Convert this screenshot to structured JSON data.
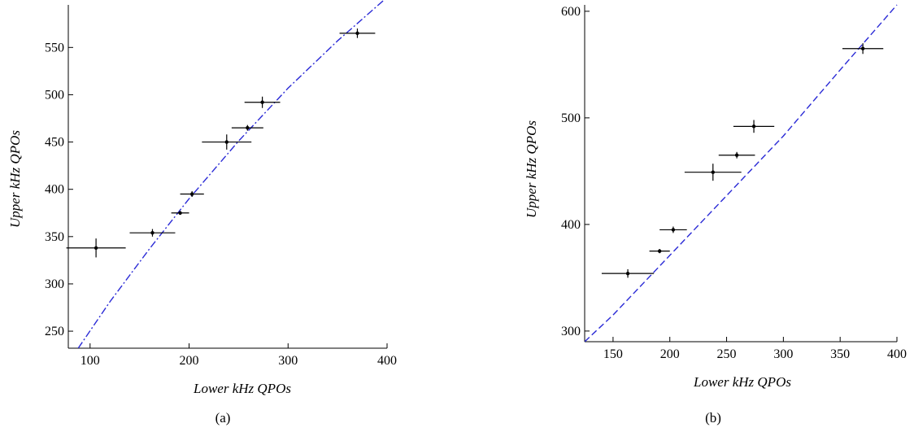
{
  "chart_data": [
    {
      "type": "scatter",
      "caption": "(a)",
      "xlabel": "Lower kHz QPOs",
      "ylabel": "Upper kHz QPOs",
      "xlim": [
        78,
        400
      ],
      "ylim": [
        232,
        595
      ],
      "x_ticks": [
        100,
        200,
        300,
        400
      ],
      "y_ticks": [
        250,
        300,
        350,
        400,
        450,
        500,
        550
      ],
      "x_tick_labels": [
        "100",
        "200",
        "300",
        "400"
      ],
      "y_tick_labels": [
        "250",
        "300",
        "350",
        "400",
        "450",
        "500",
        "550"
      ],
      "grid": false,
      "series": [
        {
          "kind": "errorbar",
          "color": "#000000",
          "points": [
            {
              "x": 106,
              "y": 338,
              "xerr": 30,
              "yerr": 10
            },
            {
              "x": 163,
              "y": 354,
              "xerr": 23,
              "yerr": 4
            },
            {
              "x": 191,
              "y": 375,
              "xerr": 9,
              "yerr": 2
            },
            {
              "x": 203,
              "y": 395,
              "xerr": 12,
              "yerr": 3
            },
            {
              "x": 238,
              "y": 450,
              "xerr": 25,
              "yerr": 8
            },
            {
              "x": 259,
              "y": 465,
              "xerr": 16,
              "yerr": 3
            },
            {
              "x": 274,
              "y": 492,
              "xerr": 18,
              "yerr": 6
            },
            {
              "x": 370,
              "y": 565,
              "xerr": 18,
              "yerr": 5
            }
          ]
        },
        {
          "kind": "fit-line",
          "style": "dash-dot",
          "color": "#2a2ad6",
          "x": [
            88,
            120,
            160,
            200,
            250,
            300,
            350,
            400
          ],
          "y": [
            232,
            281,
            337,
            390,
            451,
            507,
            557,
            603
          ]
        }
      ]
    },
    {
      "type": "scatter",
      "caption": "(b)",
      "xlabel": "Lower kHz QPOs",
      "ylabel": "Upper kHz QPOs",
      "xlim": [
        125,
        400
      ],
      "ylim": [
        290,
        606
      ],
      "x_ticks": [
        150,
        200,
        250,
        300,
        350,
        400
      ],
      "y_ticks": [
        300,
        400,
        500,
        600
      ],
      "x_tick_labels": [
        "150",
        "200",
        "250",
        "300",
        "350",
        "400"
      ],
      "y_tick_labels": [
        "300",
        "400",
        "500",
        "600"
      ],
      "grid": false,
      "series": [
        {
          "kind": "errorbar",
          "color": "#000000",
          "points": [
            {
              "x": 163,
              "y": 354,
              "xerr": 23,
              "yerr": 4
            },
            {
              "x": 191,
              "y": 375,
              "xerr": 9,
              "yerr": 2
            },
            {
              "x": 203,
              "y": 395,
              "xerr": 12,
              "yerr": 3
            },
            {
              "x": 238,
              "y": 449,
              "xerr": 25,
              "yerr": 8
            },
            {
              "x": 259,
              "y": 465,
              "xerr": 16,
              "yerr": 3
            },
            {
              "x": 274,
              "y": 492,
              "xerr": 18,
              "yerr": 6
            },
            {
              "x": 370,
              "y": 565,
              "xerr": 18,
              "yerr": 5
            }
          ]
        },
        {
          "kind": "fit-line",
          "style": "dashed",
          "color": "#2a2ad6",
          "x": [
            125,
            150,
            200,
            250,
            300,
            350,
            400
          ],
          "y": [
            290,
            315,
            371,
            427,
            483,
            545,
            606
          ]
        }
      ]
    }
  ]
}
